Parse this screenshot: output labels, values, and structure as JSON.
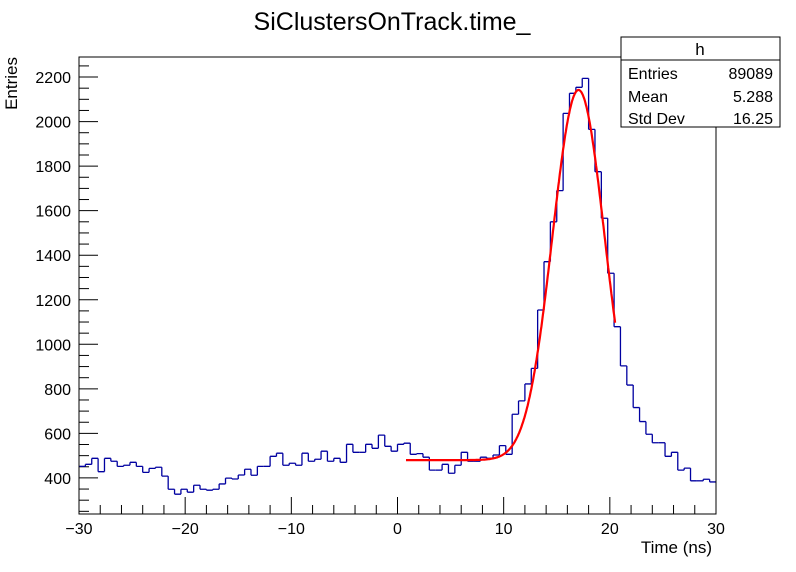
{
  "chart_data": {
    "type": "histogram",
    "title": "SiClustersOnTrack.time_",
    "xlabel": "Time (ns)",
    "ylabel": "Entries",
    "xlim": [
      -30,
      30
    ],
    "ylim": [
      238,
      2290
    ],
    "x_ticks": [
      -30,
      -20,
      -10,
      0,
      10,
      20,
      30
    ],
    "x_tick_labels": [
      "−30",
      "−20",
      "−10",
      "0",
      "10",
      "20",
      "30"
    ],
    "y_ticks": [
      400,
      600,
      800,
      1000,
      1200,
      1400,
      1600,
      1800,
      2000,
      2200
    ],
    "y_tick_labels": [
      "400",
      "600",
      "800",
      "1000",
      "1200",
      "1400",
      "1600",
      "1800",
      "2000",
      "2200"
    ],
    "grid": false,
    "bins": {
      "low": -30,
      "high": 30,
      "count": 100,
      "values": [
        452,
        461,
        488,
        428,
        488,
        475,
        452,
        457,
        470,
        452,
        425,
        443,
        448,
        408,
        349,
        327,
        349,
        336,
        367,
        349,
        345,
        349,
        373,
        399,
        395,
        413,
        439,
        412,
        452,
        452,
        497,
        511,
        457,
        466,
        457,
        511,
        475,
        484,
        520,
        475,
        488,
        470,
        551,
        515,
        515,
        551,
        533,
        592,
        542,
        520,
        551,
        556,
        506,
        509,
        493,
        435,
        435,
        461,
        421,
        457,
        515,
        475,
        475,
        493,
        488,
        503,
        545,
        506,
        686,
        746,
        822,
        892,
        1154,
        1371,
        1550,
        1690,
        2037,
        2127,
        2154,
        2194,
        1965,
        1775,
        1566,
        1319,
        1079,
        903,
        817,
        716,
        653,
        596,
        558,
        558,
        497,
        515,
        435,
        444,
        387,
        387,
        394,
        382
      ]
    },
    "fit": {
      "function": "constant + gaussian",
      "range": [
        0.8,
        20.5
      ],
      "constant": 480,
      "amplitude": 1662,
      "mean": 17.05,
      "sigma": 2.45
    },
    "colors": {
      "histogram": "#0000a0",
      "fit": "#ff0000",
      "frame": "#000000"
    }
  },
  "stats": {
    "name": "h",
    "rows": [
      {
        "label": "Entries",
        "value": "89089"
      },
      {
        "label": "Mean",
        "value": "5.288"
      },
      {
        "label": "Std Dev",
        "value": "16.25"
      }
    ]
  }
}
